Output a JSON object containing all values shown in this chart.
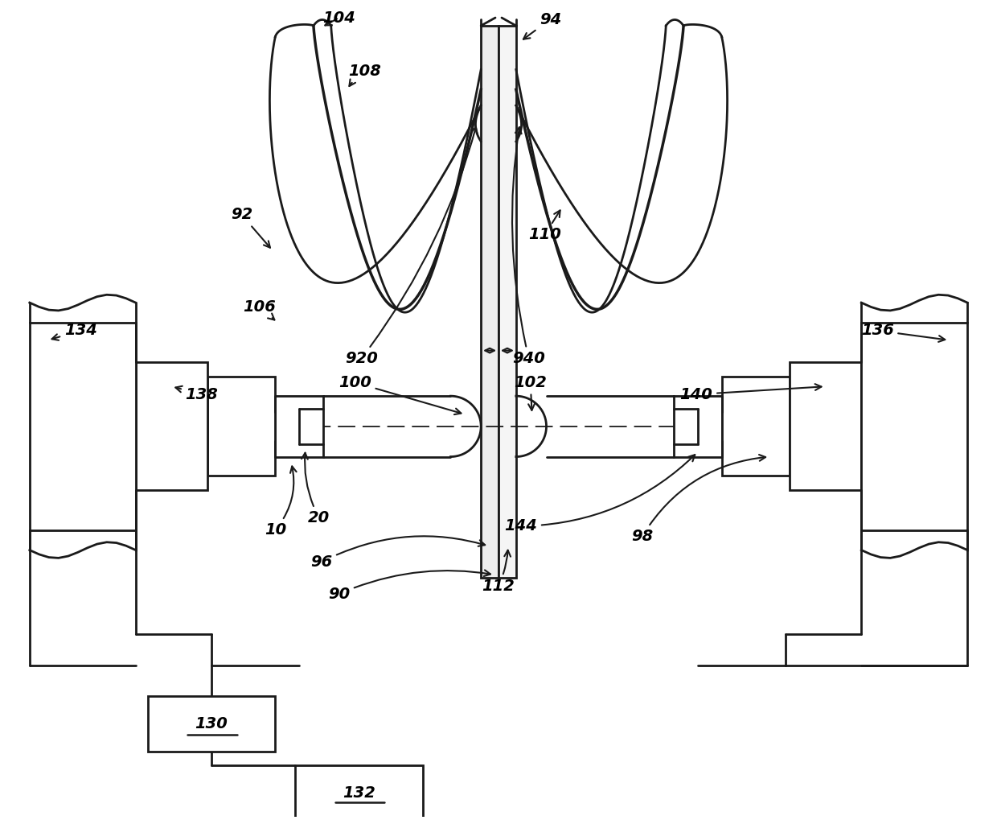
{
  "background_color": "#ffffff",
  "line_color": "#1a1a1a",
  "fig_width": 12.4,
  "fig_height": 10.19,
  "lw_main": 2.0,
  "lw_thin": 1.5,
  "font_size": 13
}
